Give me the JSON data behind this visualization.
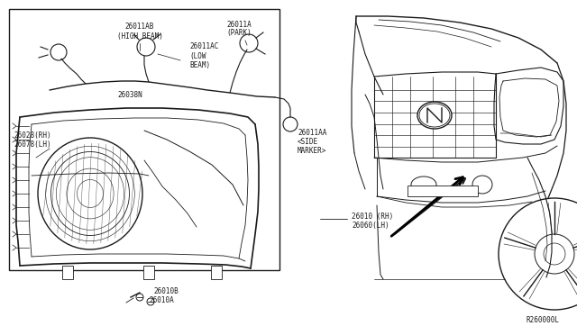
{
  "bg_color": "#ffffff",
  "line_color": "#1a1a1a",
  "box_bg": "#ffffff",
  "ref_code": "R260000L",
  "labels": {
    "high_beam": "26011AB\n(HIGH BEAM)",
    "park": "26011A\n(PARK)",
    "low_beam": "26011AC\n(LOW\nBEAM)",
    "side_marker": "26011AA\n<SIDE\nMARKER>",
    "harness": "26038N",
    "rh_lh": "26028(RH)\n26078(LH)",
    "headlamp_label": "26010 (RH)\n26060(LH)",
    "screw1": "26010B",
    "screw2": "26010A"
  },
  "fig_w": 6.4,
  "fig_h": 3.72,
  "dpi": 100,
  "font_size": 5.5,
  "font_size_ref": 5.5
}
